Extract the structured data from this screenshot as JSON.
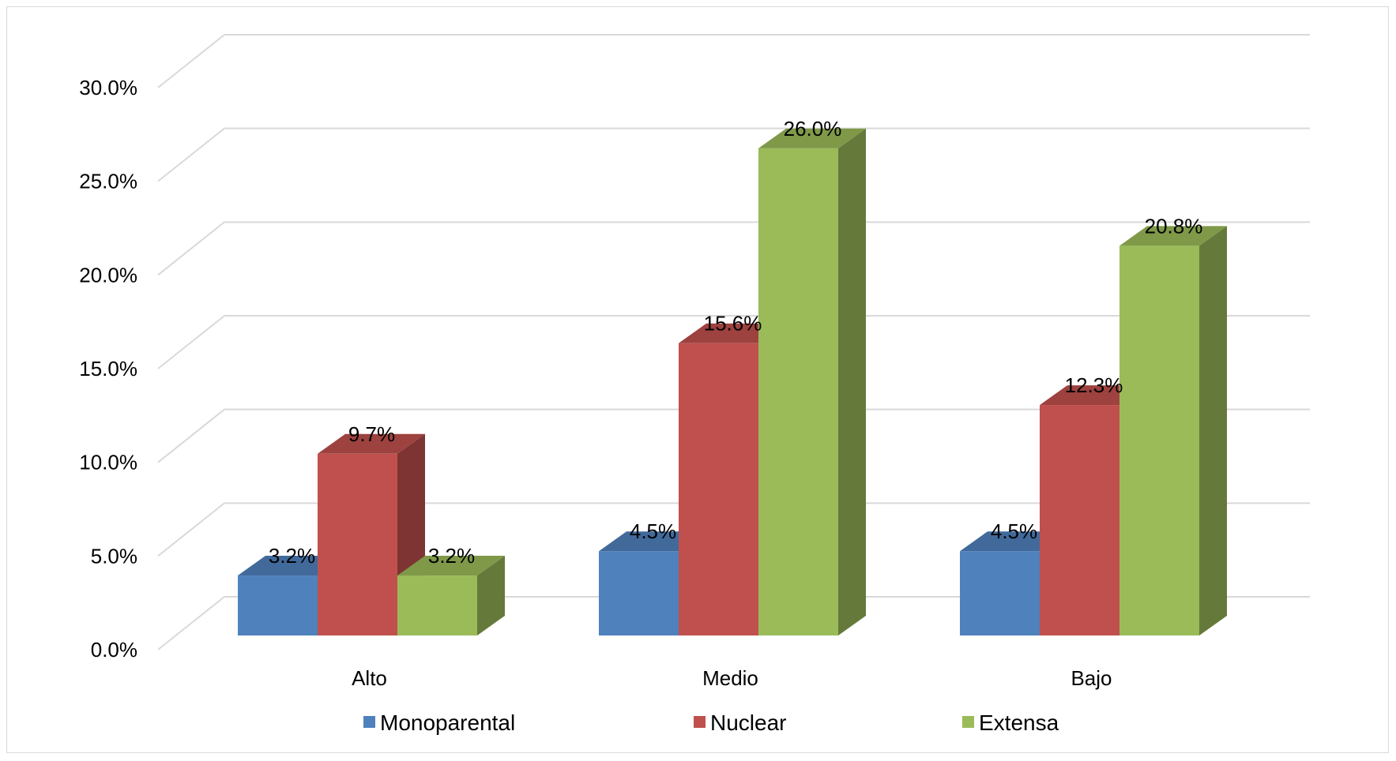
{
  "chart_data": {
    "type": "bar",
    "style": "3d-clustered-column",
    "categories": [
      "Alto",
      "Medio",
      "Bajo"
    ],
    "series": [
      {
        "name": "Monoparental",
        "values": [
          3.2,
          4.5,
          4.5
        ],
        "color": "#4f81bd",
        "labels": [
          "3.2%",
          "4.5%",
          "4.5%"
        ]
      },
      {
        "name": "Nuclear",
        "values": [
          9.7,
          15.6,
          12.3
        ],
        "color": "#c0504d",
        "labels": [
          "9.7%",
          "15.6%",
          "12.3%"
        ]
      },
      {
        "name": "Extensa",
        "values": [
          3.2,
          26.0,
          20.8
        ],
        "color": "#9bbb59",
        "labels": [
          "3.2%",
          "26.0%",
          "20.8%"
        ]
      }
    ],
    "y_ticks": [
      "0.0%",
      "5.0%",
      "10.0%",
      "15.0%",
      "20.0%",
      "25.0%",
      "30.0%"
    ],
    "ylim": [
      0,
      30
    ],
    "title": "",
    "xlabel": "",
    "ylabel": "",
    "grid": true,
    "legend_position": "bottom"
  }
}
